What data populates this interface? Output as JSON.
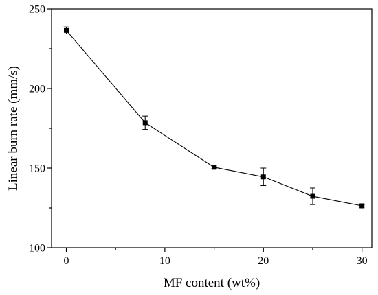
{
  "chart_data": {
    "type": "line",
    "xlabel": "MF content (wt%)",
    "ylabel": "Linear burn rate  (mm/s)",
    "xlim": [
      -1.5,
      31
    ],
    "ylim": [
      100,
      250
    ],
    "xticks": [
      0,
      10,
      20,
      30
    ],
    "yticks": [
      100,
      150,
      200,
      250
    ],
    "x_minor_ticks": [
      5,
      15,
      25
    ],
    "y_minor_ticks": [
      125,
      175,
      225
    ],
    "x_tick_labels": [
      "0",
      "10",
      "20",
      "30"
    ],
    "y_tick_labels": [
      "100",
      "150",
      "200",
      "250"
    ],
    "grid": false,
    "legend": "none",
    "marker": "square",
    "series": [
      {
        "x": [
          0,
          8,
          15,
          20,
          25,
          30
        ],
        "y": [
          236.5,
          178.5,
          150.5,
          144.5,
          132.3,
          126.3
        ],
        "error": [
          2.2,
          4.2,
          0.8,
          5.5,
          5.2,
          0.8
        ],
        "color": "#000000"
      }
    ]
  }
}
